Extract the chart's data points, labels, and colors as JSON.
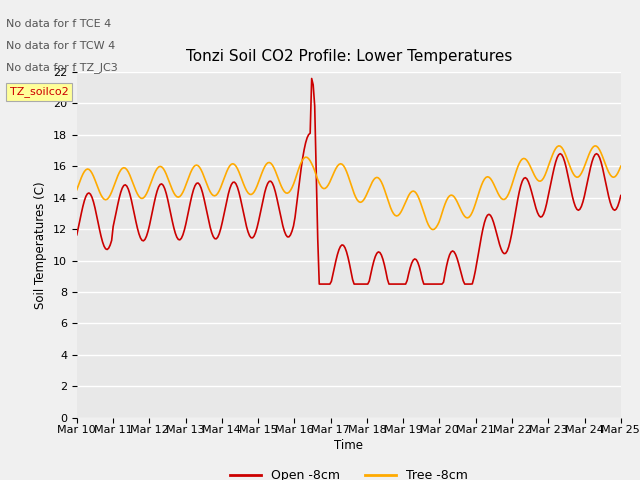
{
  "title": "Tonzi Soil CO2 Profile: Lower Temperatures",
  "ylabel": "Soil Temperatures (C)",
  "xlabel": "Time",
  "annotations": [
    "No data for f TCE 4",
    "No data for f TCW 4",
    "No data for f TZ_JC3"
  ],
  "legend_box_label": "TZ_soilco2",
  "ylim": [
    0,
    22
  ],
  "yticks": [
    0,
    2,
    4,
    6,
    8,
    10,
    12,
    14,
    16,
    18,
    20,
    22
  ],
  "xtick_labels": [
    "Mar 10",
    "Mar 11",
    "Mar 12",
    "Mar 13",
    "Mar 14",
    "Mar 15",
    "Mar 16",
    "Mar 17",
    "Mar 18",
    "Mar 19",
    "Mar 20",
    "Mar 21",
    "Mar 22",
    "Mar 23",
    "Mar 24",
    "Mar 25"
  ],
  "bg_color": "#e8e8e8",
  "grid_color": "#ffffff",
  "open_color": "#cc0000",
  "tree_color": "#ffaa00",
  "legend_entries": [
    "Open -8cm",
    "Tree -8cm"
  ]
}
